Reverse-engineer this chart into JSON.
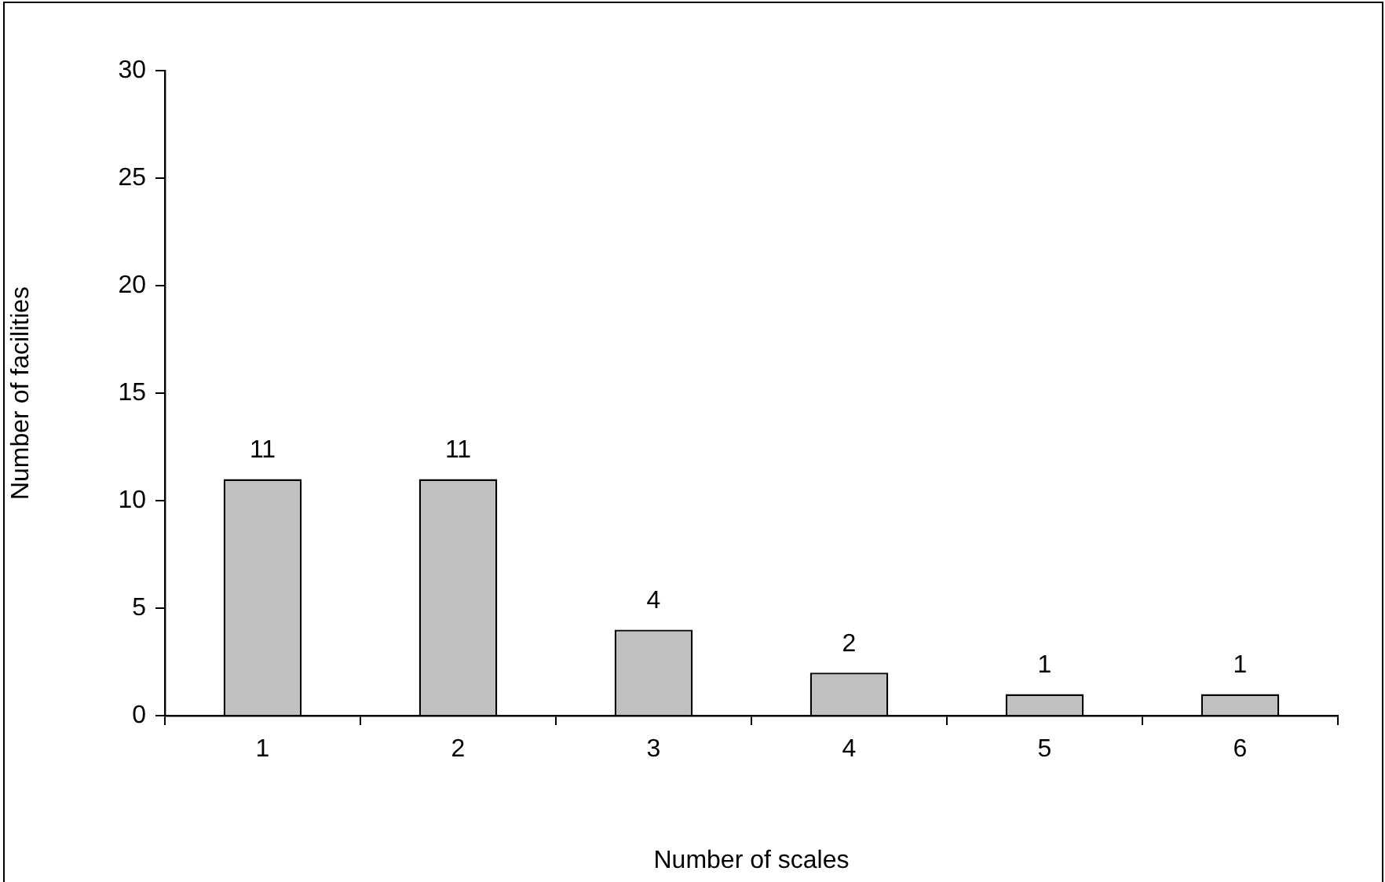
{
  "chart_data": {
    "type": "bar",
    "xlabel": "Number of scales",
    "ylabel": "Number of facilities",
    "categories": [
      "1",
      "2",
      "3",
      "4",
      "5",
      "6"
    ],
    "values": [
      11,
      11,
      4,
      2,
      1,
      1
    ],
    "color": "#c0c0c0",
    "ylim": [
      0,
      30
    ],
    "yticks": [
      0,
      5,
      10,
      15,
      20,
      25,
      30
    ],
    "grid": false,
    "legend": false,
    "data_labels": true
  }
}
